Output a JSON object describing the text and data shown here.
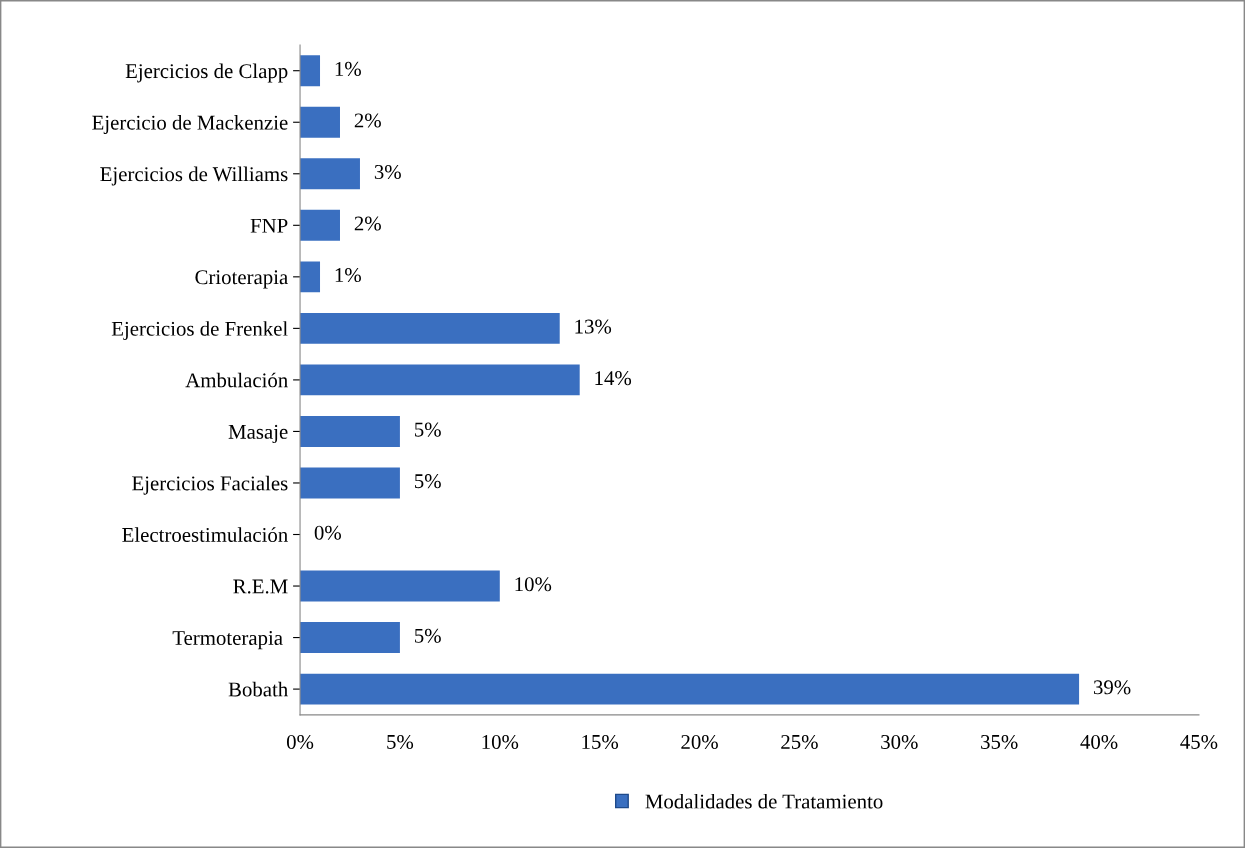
{
  "chart_data": {
    "type": "bar",
    "orientation": "horizontal",
    "categories": [
      "Ejercicios de Clapp",
      "Ejercicio de Mackenzie",
      "Ejercicios de Williams",
      "FNP",
      "Crioterapia",
      "Ejercicios de Frenkel",
      "Ambulación",
      "Masaje",
      "Ejercicios Faciales",
      "Electroestimulación",
      "R.E.M",
      "Termoterapia ",
      "Bobath"
    ],
    "series": [
      {
        "name": "Modalidades de Tratamiento",
        "color": "#3a6fc0",
        "values": [
          1,
          2,
          3,
          2,
          1,
          13,
          14,
          5,
          5,
          0,
          10,
          5,
          39
        ],
        "value_labels": [
          "1%",
          "2%",
          "3%",
          "2%",
          "1%",
          "13%",
          "14%",
          "5%",
          "5%",
          "0%",
          "10%",
          "5%",
          "39%"
        ]
      }
    ],
    "xlim": [
      0,
      45
    ],
    "xticks": [
      {
        "value": 0,
        "label": "0%"
      },
      {
        "value": 5,
        "label": "5%"
      },
      {
        "value": 10,
        "label": "10%"
      },
      {
        "value": 15,
        "label": "15%"
      },
      {
        "value": 20,
        "label": "20%"
      },
      {
        "value": 25,
        "label": "25%"
      },
      {
        "value": 30,
        "label": "30%"
      },
      {
        "value": 35,
        "label": "35%"
      },
      {
        "value": 40,
        "label": "40%"
      },
      {
        "value": 45,
        "label": "45%"
      }
    ],
    "grid": false,
    "legend": "bottom"
  }
}
